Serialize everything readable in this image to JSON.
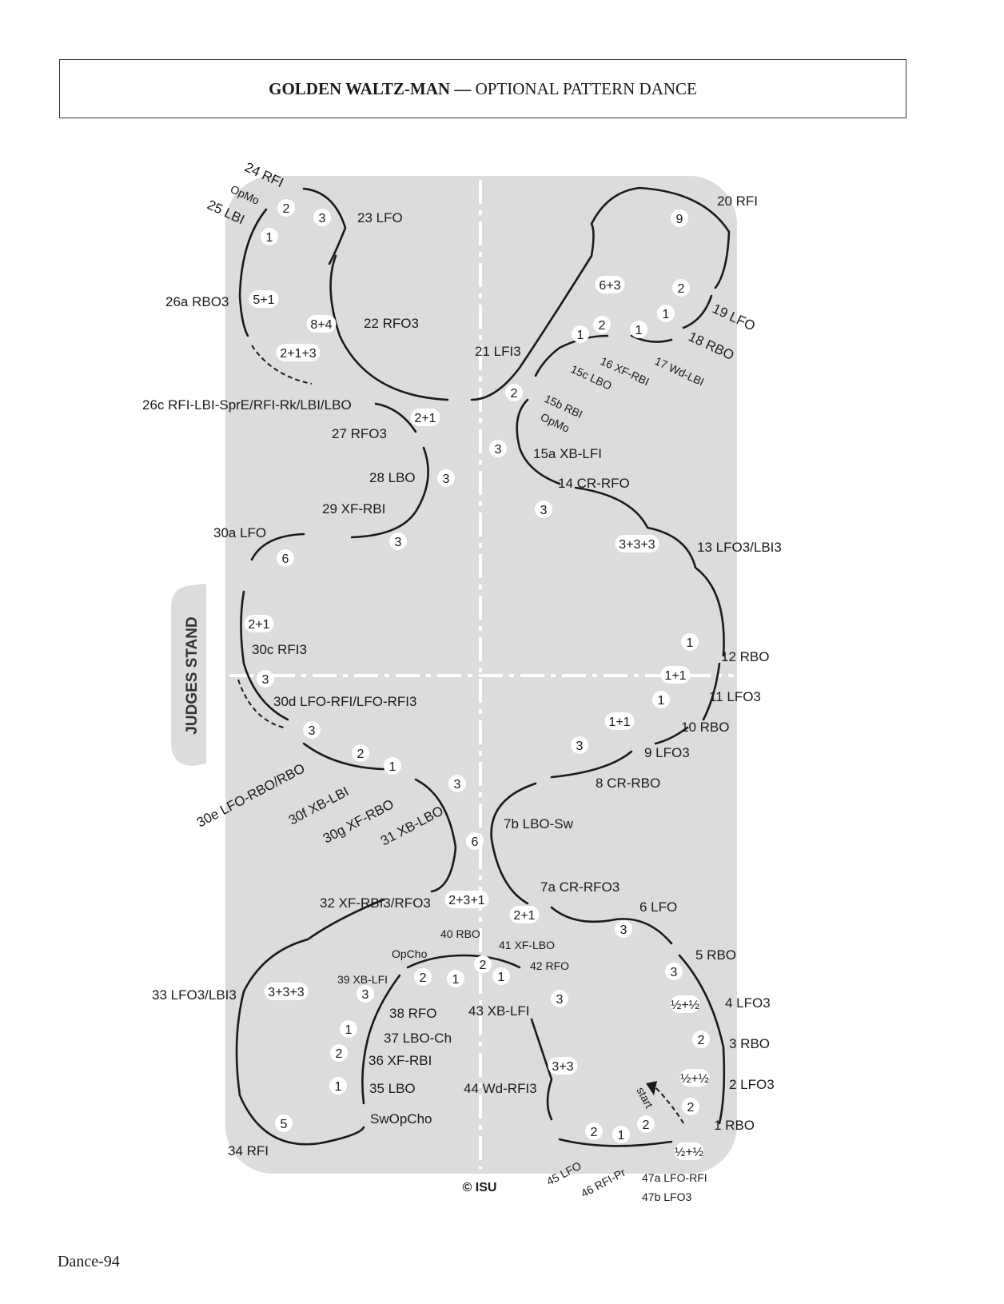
{
  "title": {
    "bold": "GOLDEN WALTZ-MAN —",
    "rest": " OPTIONAL PATTERN DANCE"
  },
  "judges_label": "JUDGES STAND",
  "copyright": "© ISU",
  "page_footer": "Dance-94",
  "start_label": "start",
  "step_labels": [
    "24 RFI",
    "OpMo",
    "25 LBI",
    "23 LFO",
    "26a RBO3",
    "22 RFO3",
    "26c RFI-LBI-SprE/RFI-Rk/LBI/LBO",
    "27 RFO3",
    "28 LBO",
    "29 XF-RBI",
    "30a LFO",
    "30c RFI3",
    "30d LFO-RFI/LFO-RFI3",
    "30e LFO-RBO/RBO",
    "30f XB-LBI",
    "30g XF-RBO",
    "31 XB-LBO",
    "32 XF-RBI3/RFO3",
    "33 LFO3/LBI3",
    "34 RFI",
    "35 LBO",
    "SwOpCho",
    "36 XF-RBI",
    "37 LBO-Ch",
    "38 RFO",
    "39 XB-LFI",
    "OpCho",
    "40 RBO",
    "41 XF-LBO",
    "42 RFO",
    "43 XB-LFI",
    "44 Wd-RFI3",
    "45 LFO",
    "46 RFI-Pr",
    "47a LFO-RFI",
    "47b LFO3",
    "1 RBO",
    "2 LFO3",
    "3 RBO",
    "4 LFO3",
    "5 RBO",
    "6 LFO",
    "7a CR-RFO3",
    "7b LBO-Sw",
    "8 CR-RBO",
    "9 LFO3",
    "10 RBO",
    "11 LFO3",
    "12 RBO",
    "13 LFO3/LBI3",
    "14 CR-RFO",
    "15a XB-LFI",
    "15b RBI",
    "OpMo",
    "15c LBO",
    "16 XF-RBI",
    "17 Wd-LBI",
    "18 RBO",
    "19 LFO",
    "20 RFI",
    "21 LFI3"
  ],
  "beat_counts": [
    "2",
    "3",
    "1",
    "5+1",
    "8+4",
    "2+1+3",
    "2+1",
    "3",
    "3",
    "6",
    "2+1",
    "3",
    "3",
    "2",
    "1",
    "3",
    "6",
    "2+3+1",
    "2+1",
    "3+3+3",
    "3",
    "1",
    "2",
    "1",
    "5",
    "2",
    "1",
    "2",
    "1",
    "3",
    "3+3",
    "2",
    "1",
    "2",
    "½+½",
    "2",
    "½+½",
    "2",
    "½+½",
    "3",
    "3",
    "1+1",
    "1",
    "1+1",
    "1",
    "3",
    "3+3+3",
    "3",
    "3",
    "2",
    "1",
    "2",
    "1",
    "1",
    "2",
    "6+3",
    "1",
    "9"
  ]
}
